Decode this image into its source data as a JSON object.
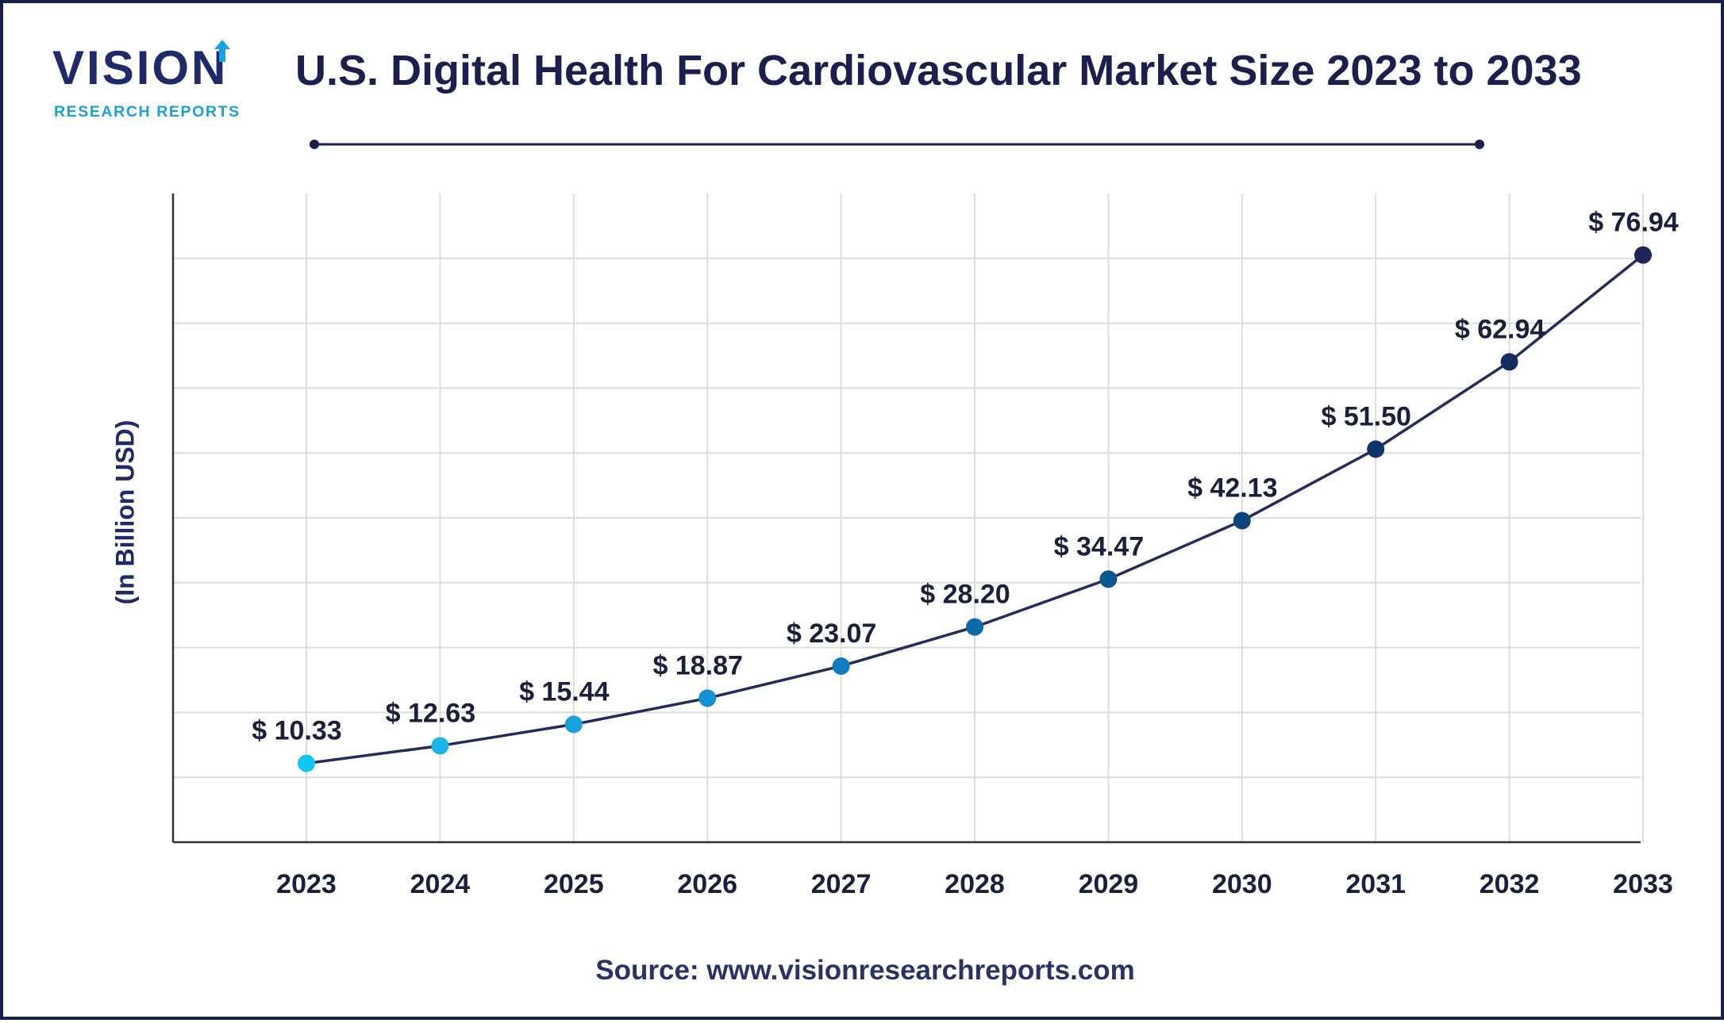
{
  "brand": {
    "name": "VISION",
    "tagline": "RESEARCH REPORTS",
    "primary_color": "#1f2a6b",
    "accent_color": "#1aa0e0"
  },
  "header": {
    "title": "U.S. Digital Health For Cardiovascular Market Size 2023 to 2033"
  },
  "footer": {
    "source": "Source: www.visionresearchreports.com"
  },
  "chart_data": {
    "type": "line",
    "title": "U.S. Digital Health For Cardiovascular Market Size 2023 to 2033",
    "xlabel": "",
    "ylabel": "(In Billion USD)",
    "categories": [
      "2023",
      "2024",
      "2025",
      "2026",
      "2027",
      "2028",
      "2029",
      "2030",
      "2031",
      "2032",
      "2033"
    ],
    "values": [
      10.33,
      12.63,
      15.44,
      18.87,
      23.07,
      28.2,
      34.47,
      42.13,
      51.5,
      62.94,
      76.94
    ],
    "value_labels": [
      "$ 10.33",
      "$ 12.63",
      "$ 15.44",
      "$ 18.87",
      "$ 23.07",
      "$ 28.20",
      "$ 34.47",
      "$ 42.13",
      "$ 51.50",
      "$ 62.94",
      "$ 76.94"
    ],
    "ylim": [
      0,
      85
    ],
    "grid": true,
    "legend": "none",
    "colors": {
      "line": "#262b5e",
      "gridline": "#dcdcdc",
      "axis": "#333333",
      "marker_gradient": [
        "#12c6f3",
        "#1aa7e3",
        "#138bcc",
        "#0c6aa8",
        "#0a4a86",
        "#0b2f66",
        "#1f2558"
      ]
    }
  }
}
